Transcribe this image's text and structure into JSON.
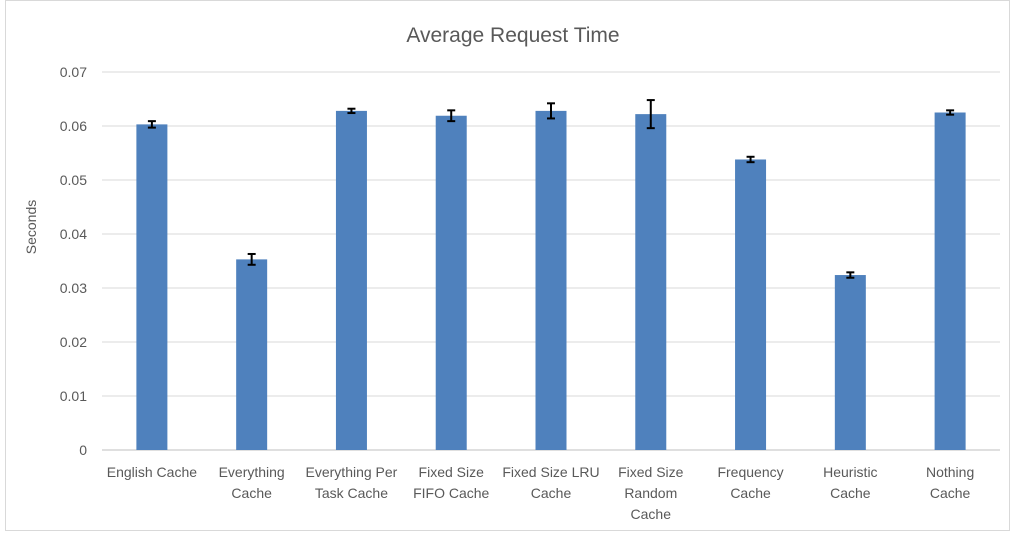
{
  "chart_data": {
    "type": "bar",
    "title": "Average Request Time",
    "xlabel": "",
    "ylabel": "Seconds",
    "ylim": [
      0,
      0.07
    ],
    "yticks": [
      "0",
      "0.01",
      "0.02",
      "0.03",
      "0.04",
      "0.05",
      "0.06",
      "0.07"
    ],
    "grid": true,
    "legend": "none",
    "bar_color": "#4f81bd",
    "categories": [
      [
        "English Cache"
      ],
      [
        "Everything",
        "Cache"
      ],
      [
        "Everything Per",
        "Task Cache"
      ],
      [
        "Fixed Size",
        "FIFO Cache"
      ],
      [
        "Fixed Size LRU",
        "Cache"
      ],
      [
        "Fixed Size",
        "Random",
        "Cache"
      ],
      [
        "Frequency",
        "Cache"
      ],
      [
        "Heuristic",
        "Cache"
      ],
      [
        "Nothing",
        "Cache"
      ]
    ],
    "values": [
      0.0603,
      0.0353,
      0.0628,
      0.0619,
      0.0628,
      0.0622,
      0.0538,
      0.0324,
      0.0625
    ],
    "errors": [
      0.0006,
      0.001,
      0.0004,
      0.001,
      0.0014,
      0.0026,
      0.0005,
      0.0005,
      0.0004
    ]
  }
}
